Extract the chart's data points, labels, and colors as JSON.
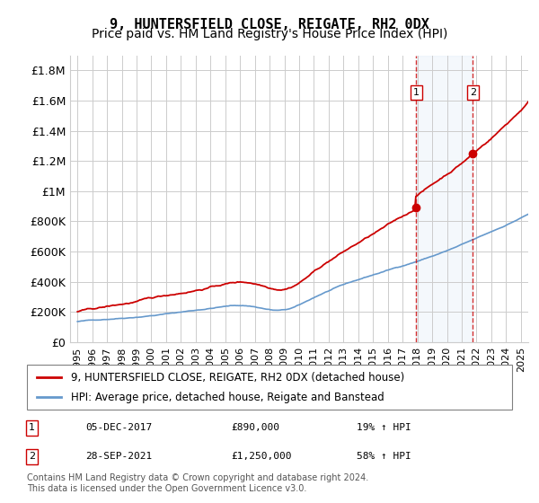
{
  "title": "9, HUNTERSFIELD CLOSE, REIGATE, RH2 0DX",
  "subtitle": "Price paid vs. HM Land Registry's House Price Index (HPI)",
  "ylabel_ticks": [
    "£0",
    "£200K",
    "£400K",
    "£600K",
    "£800K",
    "£1M",
    "£1.2M",
    "£1.4M",
    "£1.6M",
    "£1.8M"
  ],
  "ytick_values": [
    0,
    200000,
    400000,
    600000,
    800000,
    1000000,
    1200000,
    1400000,
    1600000,
    1800000
  ],
  "ylim": [
    0,
    1900000
  ],
  "xlim_start": 1995.0,
  "xlim_end": 2025.5,
  "background_color": "#ffffff",
  "grid_color": "#cccccc",
  "plot_bg_color": "#ffffff",
  "legend_label_red": "9, HUNTERSFIELD CLOSE, REIGATE, RH2 0DX (detached house)",
  "legend_label_blue": "HPI: Average price, detached house, Reigate and Banstead",
  "red_color": "#cc0000",
  "blue_color": "#6699cc",
  "marker1_date": 2017.92,
  "marker1_value": 890000,
  "marker1_label": "1",
  "marker1_text": "05-DEC-2017",
  "marker1_price": "£890,000",
  "marker1_hpi": "19% ↑ HPI",
  "marker2_date": 2021.75,
  "marker2_value": 1250000,
  "marker2_label": "2",
  "marker2_text": "28-SEP-2021",
  "marker2_price": "£1,250,000",
  "marker2_hpi": "58% ↑ HPI",
  "shade_start": 2017.92,
  "shade_end": 2021.75,
  "footer_line1": "Contains HM Land Registry data © Crown copyright and database right 2024.",
  "footer_line2": "This data is licensed under the Open Government Licence v3.0.",
  "title_fontsize": 11,
  "subtitle_fontsize": 10,
  "tick_fontsize": 9,
  "legend_fontsize": 8.5,
  "annotation_fontsize": 8
}
